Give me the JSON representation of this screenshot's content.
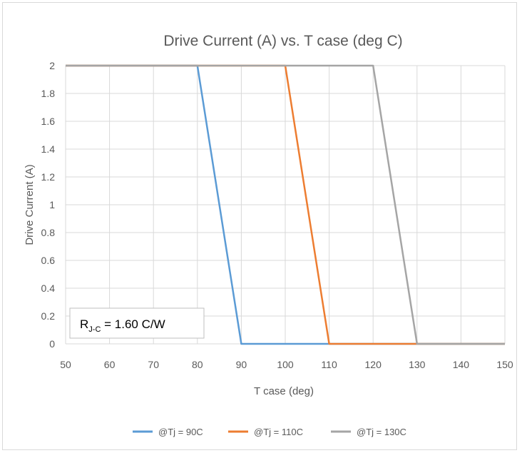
{
  "chart_data": {
    "type": "line",
    "title": "Drive Current (A) vs. T case (deg C)",
    "xlabel": "T case (deg)",
    "ylabel": "Drive Current (A)",
    "xlim": [
      50,
      150
    ],
    "ylim": [
      0,
      2
    ],
    "xticks": [
      "50",
      "60",
      "70",
      "80",
      "90",
      "100",
      "110",
      "120",
      "130",
      "140",
      "150"
    ],
    "yticks": [
      "0",
      "0.2",
      "0.4",
      "0.6",
      "0.8",
      "1",
      "1.2",
      "1.4",
      "1.6",
      "1.8",
      "2"
    ],
    "grid": true,
    "legend_position": "bottom",
    "series": [
      {
        "name": "@Tj = 90C",
        "color": "#5b9bd5",
        "x": [
          50,
          80,
          90,
          150
        ],
        "y": [
          2,
          2,
          0,
          0
        ]
      },
      {
        "name": "@Tj = 110C",
        "color": "#ed7d31",
        "x": [
          50,
          100,
          110,
          150
        ],
        "y": [
          2,
          2,
          0,
          0
        ]
      },
      {
        "name": "@Tj = 130C",
        "color": "#a5a5a5",
        "x": [
          50,
          120,
          130,
          150
        ],
        "y": [
          2,
          2,
          0,
          0
        ]
      }
    ],
    "annotation": {
      "main": "R",
      "subscript": "J-C",
      "rest": " = 1.60 C/W"
    }
  }
}
